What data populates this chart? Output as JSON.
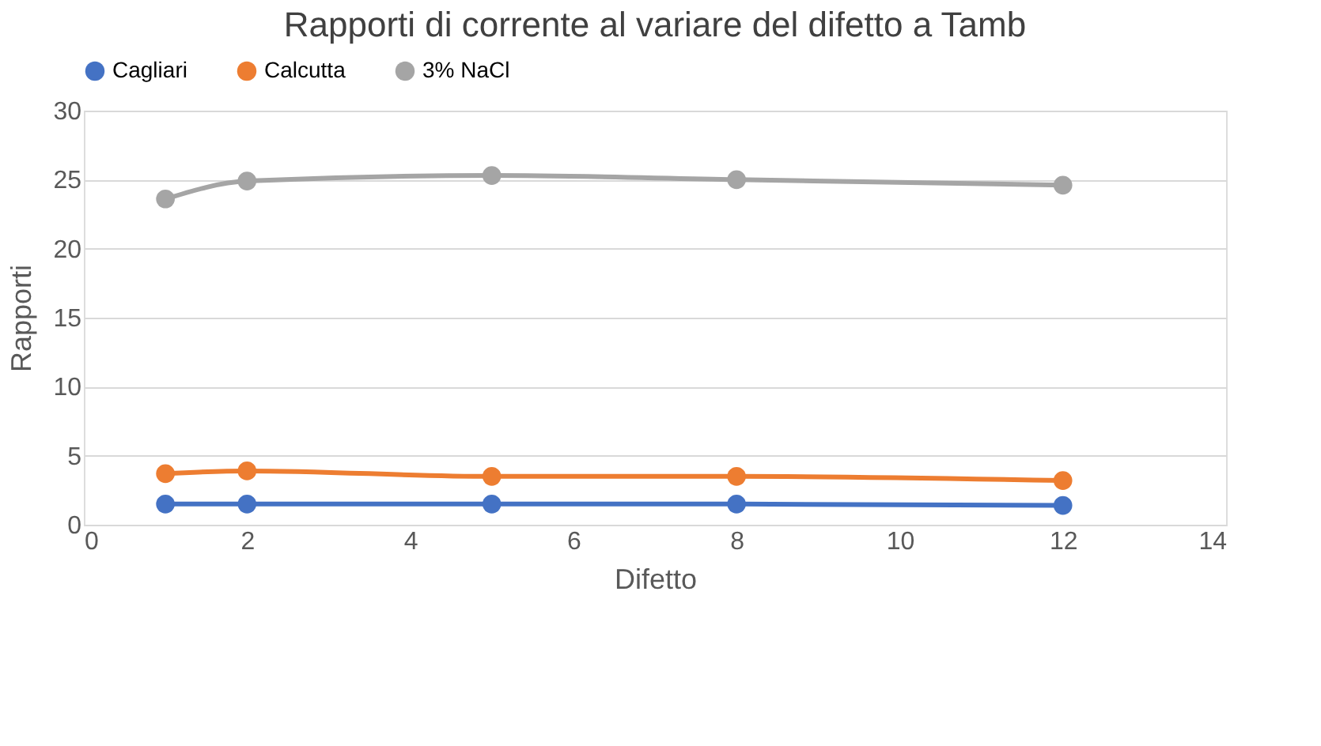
{
  "chart_data": {
    "type": "line",
    "title": "Rapporti di corrente al variare del difetto a Tamb",
    "xlabel": "Difetto",
    "ylabel": "Rapporti",
    "x": [
      1,
      2,
      5,
      8,
      12
    ],
    "series": [
      {
        "name": "Cagliari",
        "color": "#4472c4",
        "values": [
          1.5,
          1.5,
          1.5,
          1.5,
          1.4
        ]
      },
      {
        "name": "Calcutta",
        "color": "#ed7d31",
        "values": [
          3.7,
          3.9,
          3.5,
          3.5,
          3.2
        ]
      },
      {
        "name": "3% NaCl",
        "color": "#a5a5a5",
        "values": [
          23.6,
          24.9,
          25.3,
          25.0,
          24.6
        ]
      }
    ],
    "xlim": [
      0,
      14
    ],
    "xticks": [
      0,
      2,
      4,
      6,
      8,
      10,
      12,
      14
    ],
    "ylim": [
      0,
      30
    ],
    "yticks": [
      0,
      5,
      10,
      15,
      20,
      25,
      30
    ],
    "grid": "y",
    "legend": "top",
    "marker": "circle",
    "line_style": "solid"
  }
}
